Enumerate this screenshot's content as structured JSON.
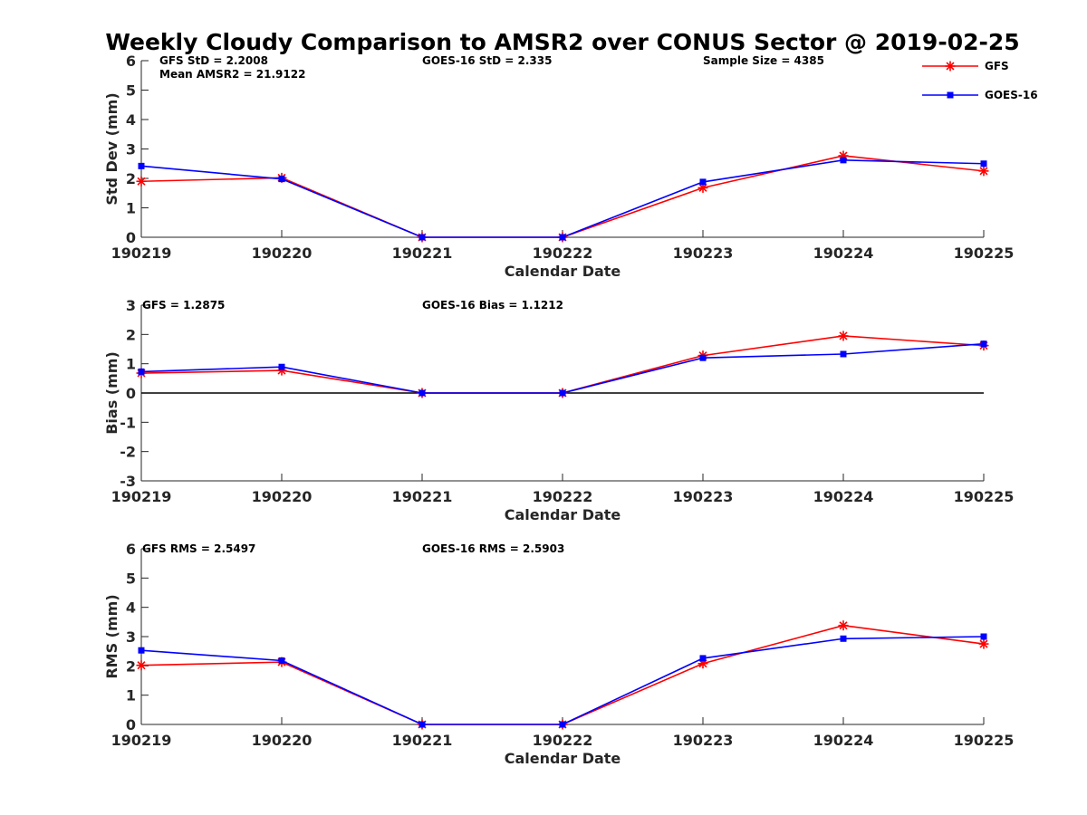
{
  "figure": {
    "title": "Weekly Cloudy Comparison to AMSR2 over CONUS Sector @ 2019-02-25"
  },
  "legend": {
    "placement": "top-right",
    "entries": [
      {
        "name": "GFS",
        "color": "#ff0000",
        "marker": "asterisk"
      },
      {
        "name": "GOES-16",
        "color": "#0000ff",
        "marker": "square"
      }
    ]
  },
  "chart_data": [
    {
      "type": "line",
      "xlabel": "Calendar Date",
      "ylabel": "Std Dev (mm)",
      "ylim": [
        0,
        6
      ],
      "yticks": [
        "0",
        "1",
        "2",
        "3",
        "4",
        "5",
        "6"
      ],
      "categories": [
        "190219",
        "190220",
        "190221",
        "190222",
        "190223",
        "190224",
        "190225"
      ],
      "zero_line": false,
      "annotations": [
        {
          "slot": "left",
          "text": "GFS StD = 2.2008"
        },
        {
          "slot": "left2",
          "text": "Mean AMSR2 = 21.9122"
        },
        {
          "slot": "mid",
          "text": "GOES-16 StD = 2.335"
        },
        {
          "slot": "right",
          "text": "Sample Size = 4385"
        }
      ],
      "series": [
        {
          "name": "GFS",
          "values": [
            1.9,
            2.02,
            0.0,
            0.0,
            1.68,
            2.77,
            2.25
          ]
        },
        {
          "name": "GOES-16",
          "values": [
            2.42,
            1.98,
            0.0,
            0.0,
            1.88,
            2.62,
            2.5
          ]
        }
      ]
    },
    {
      "type": "line",
      "xlabel": "Calendar Date",
      "ylabel": "Bias (mm)",
      "ylim": [
        -3,
        3
      ],
      "yticks": [
        "-3",
        "-2",
        "-1",
        "0",
        "1",
        "2",
        "3"
      ],
      "categories": [
        "190219",
        "190220",
        "190221",
        "190222",
        "190223",
        "190224",
        "190225"
      ],
      "zero_line": true,
      "annotations": [
        {
          "slot": "left",
          "text": "GFS = 1.2875"
        },
        {
          "slot": "mid",
          "text": "GOES-16 Bias  = 1.1212"
        }
      ],
      "series": [
        {
          "name": "GFS",
          "values": [
            0.68,
            0.77,
            0.0,
            0.0,
            1.28,
            1.95,
            1.62
          ]
        },
        {
          "name": "GOES-16",
          "values": [
            0.73,
            0.89,
            0.0,
            0.0,
            1.2,
            1.33,
            1.68
          ]
        }
      ]
    },
    {
      "type": "line",
      "xlabel": "Calendar Date",
      "ylabel": "RMS (mm)",
      "ylim": [
        0,
        6
      ],
      "yticks": [
        "0",
        "1",
        "2",
        "3",
        "4",
        "5",
        "6"
      ],
      "categories": [
        "190219",
        "190220",
        "190221",
        "190222",
        "190223",
        "190224",
        "190225"
      ],
      "zero_line": false,
      "annotations": [
        {
          "slot": "left",
          "text": "GFS RMS = 2.5497"
        },
        {
          "slot": "mid",
          "text": "GOES-16 RMS = 2.5903"
        }
      ],
      "series": [
        {
          "name": "GFS",
          "values": [
            2.02,
            2.13,
            0.0,
            0.0,
            2.08,
            3.38,
            2.75
          ]
        },
        {
          "name": "GOES-16",
          "values": [
            2.53,
            2.18,
            0.0,
            0.0,
            2.26,
            2.93,
            3.0
          ]
        }
      ]
    }
  ]
}
